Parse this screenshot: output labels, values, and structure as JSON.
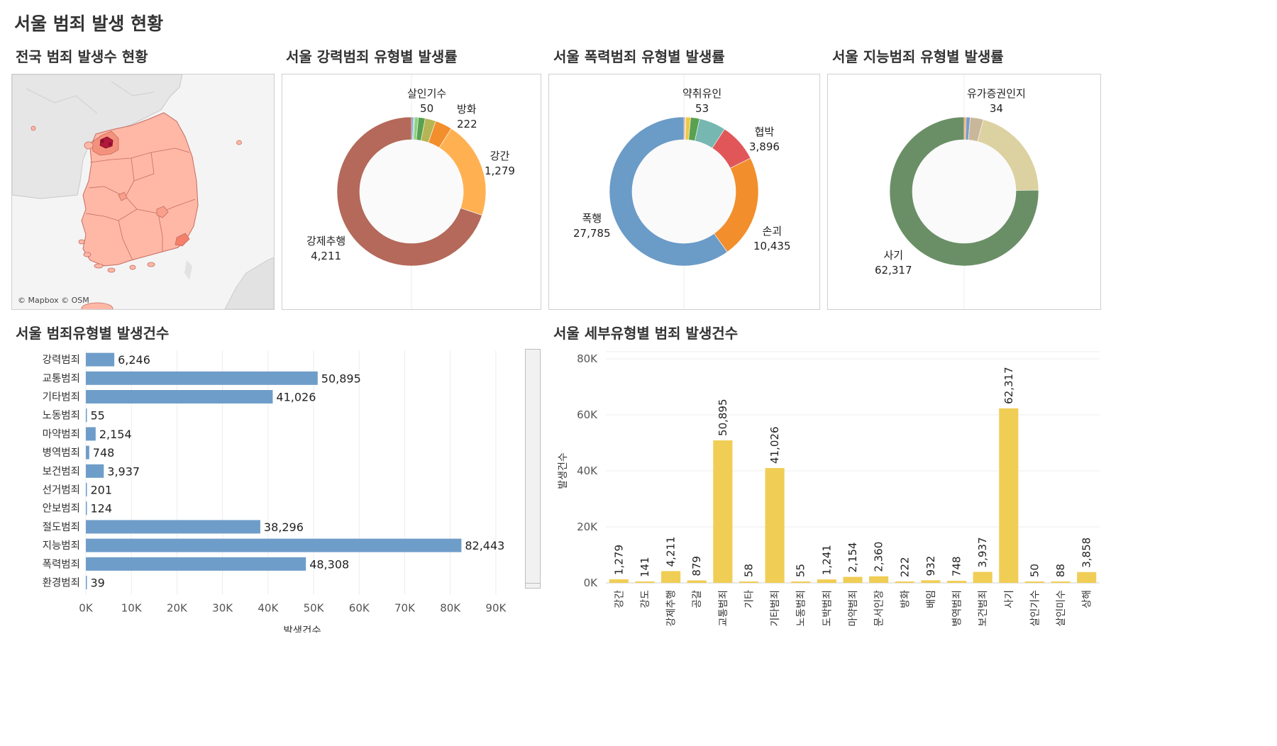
{
  "dashboard_title": "서울 범죄 발생 현황",
  "map": {
    "title": "전국 범죄 발생수 현황",
    "attribution": "© Mapbox © OSM",
    "colors": {
      "base": "#ffb8a6",
      "mid": "#f47f6b",
      "high": "#b2183a",
      "border": "#c56c62"
    }
  },
  "donuts": [
    {
      "title": "서울 강력범죄 유형별 발생률",
      "segments": [
        {
          "label": "강제추행",
          "value": 4211,
          "color": "#b4695a"
        },
        {
          "label": "",
          "value": 20,
          "color": "#4e79a7"
        },
        {
          "label": "",
          "value": 20,
          "color": "#a0cbe8"
        },
        {
          "label": "살인기수",
          "value": 50,
          "color": "#8cd17d"
        },
        {
          "label": "",
          "value": 88,
          "color": "#59a14f"
        },
        {
          "label": "",
          "value": 141,
          "color": "#b6b555"
        },
        {
          "label": "방화",
          "value": 222,
          "color": "#f28e2b"
        },
        {
          "label": "강간",
          "value": 1279,
          "color": "#ffb152"
        }
      ],
      "labels": [
        {
          "name": "살인기수",
          "value": "50"
        },
        {
          "name": "방화",
          "value": "222"
        },
        {
          "name": "강간",
          "value": "1,279"
        },
        {
          "name": "강제추행",
          "value": "4,211"
        }
      ]
    },
    {
      "title": "서울 폭력범죄 유형별 발생률",
      "segments": [
        {
          "label": "폭행",
          "value": 27785,
          "color": "#6b9bc7"
        },
        {
          "label": "",
          "value": 120,
          "color": "#e15759"
        },
        {
          "label": "약취유인",
          "value": 53,
          "color": "#ff9da7"
        },
        {
          "label": "",
          "value": 500,
          "color": "#edc948"
        },
        {
          "label": "",
          "value": 900,
          "color": "#59a14f"
        },
        {
          "label": "",
          "value": 2700,
          "color": "#76b7b2"
        },
        {
          "label": "협박",
          "value": 3896,
          "color": "#e15759"
        },
        {
          "label": "손괴",
          "value": 10435,
          "color": "#f28e2b"
        }
      ],
      "labels": [
        {
          "name": "약취유인",
          "value": "53"
        },
        {
          "name": "협박",
          "value": "3,896"
        },
        {
          "name": "손괴",
          "value": "10,435"
        },
        {
          "name": "폭행",
          "value": "27,785"
        }
      ]
    },
    {
      "title": "서울 지능범죄 유형별 발생률",
      "segments": [
        {
          "label": "사기",
          "value": 62317,
          "color": "#6a8f66"
        },
        {
          "label": "",
          "value": 300,
          "color": "#f28e2b"
        },
        {
          "label": "유가증권인지",
          "value": 34,
          "color": "#ff9da7"
        },
        {
          "label": "",
          "value": 748,
          "color": "#7b9bc4"
        },
        {
          "label": "",
          "value": 2360,
          "color": "#c9b79c"
        },
        {
          "label": "",
          "value": 17000,
          "color": "#dcd1a0"
        }
      ],
      "labels": [
        {
          "name": "유가증권인지",
          "value": "34"
        },
        {
          "name": "사기",
          "value": "62,317"
        }
      ]
    }
  ],
  "chart_data": [
    {
      "type": "bar",
      "orientation": "horizontal",
      "title": "서울 범죄유형별 발생건수",
      "xlabel": "발생건수",
      "ylabel": "",
      "xlim": [
        0,
        95000
      ],
      "ticks": [
        "0K",
        "10K",
        "20K",
        "30K",
        "40K",
        "50K",
        "60K",
        "70K",
        "80K",
        "90K"
      ],
      "tick_values": [
        0,
        10000,
        20000,
        30000,
        40000,
        50000,
        60000,
        70000,
        80000,
        90000
      ],
      "bar_color": "#6f9dc9",
      "categories": [
        "강력범죄",
        "교통범죄",
        "기타범죄",
        "노동범죄",
        "마약범죄",
        "병역범죄",
        "보건범죄",
        "선거범죄",
        "안보범죄",
        "절도범죄",
        "지능범죄",
        "폭력범죄",
        "환경범죄"
      ],
      "values": [
        6246,
        50895,
        41026,
        55,
        2154,
        748,
        3937,
        201,
        124,
        38296,
        82443,
        48308,
        39
      ],
      "value_labels": [
        "6,246",
        "50,895",
        "41,026",
        "55",
        "2,154",
        "748",
        "3,937",
        "201",
        "124",
        "38,296",
        "82,443",
        "48,308",
        "39"
      ]
    },
    {
      "type": "bar",
      "title": "서울 세부유형별 범죄 발생건수",
      "xlabel": "",
      "ylabel": "발생건수",
      "ylim": [
        0,
        80000
      ],
      "ticks": [
        "0K",
        "20K",
        "40K",
        "60K",
        "80K"
      ],
      "tick_values": [
        0,
        20000,
        40000,
        60000,
        80000
      ],
      "bar_color": "#f0cd55",
      "categories": [
        "강간",
        "강도",
        "강제추행",
        "공갈",
        "교통범죄",
        "기타",
        "기타범죄",
        "노동범죄",
        "도박범죄",
        "마약범죄",
        "문서인장",
        "방화",
        "배임",
        "병역범죄",
        "보건범죄",
        "사기",
        "살인기수",
        "살인미수",
        "상해"
      ],
      "values": [
        1279,
        141,
        4211,
        879,
        50895,
        58,
        41026,
        55,
        1241,
        2154,
        2360,
        222,
        932,
        748,
        3937,
        62317,
        50,
        88,
        3858
      ],
      "value_labels": [
        "1,279",
        "141",
        "4,211",
        "879",
        "50,895",
        "58",
        "41,026",
        "55",
        "1,241",
        "2,154",
        "2,360",
        "222",
        "932",
        "748",
        "3,937",
        "62,317",
        "50",
        "88",
        "3,858"
      ]
    }
  ]
}
